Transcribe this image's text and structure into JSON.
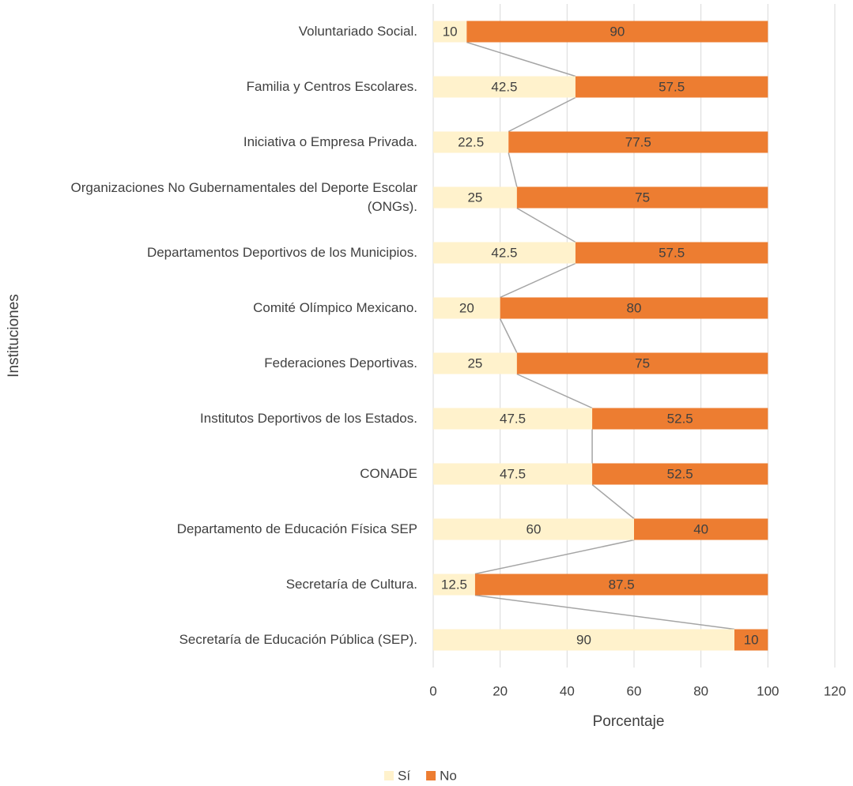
{
  "chart_data": {
    "type": "stacked-barh",
    "xlabel": "Porcentaje",
    "ylabel": "Instituciones",
    "categories": [
      "Voluntariado Social.",
      "Familia y Centros Escolares.",
      "Iniciativa o Empresa Privada.",
      "Organizaciones No Gubernamentales del Deporte Escolar (ONGs).",
      "Departamentos Deportivos de los Municipios.",
      "Comité Olímpico Mexicano.",
      "Federaciones Deportivas.",
      "Institutos Deportivos de los Estados.",
      "CONADE",
      "Departamento de Educación Física SEP",
      "Secretaría de Cultura.",
      "Secretaría de Educación Pública (SEP)."
    ],
    "series": [
      {
        "name": "Sí",
        "color": "#fff2cc",
        "values": [
          10,
          42.5,
          22.5,
          25,
          42.5,
          20,
          25,
          47.5,
          47.5,
          60,
          12.5,
          90
        ]
      },
      {
        "name": "No",
        "color": "#ed7d31",
        "values": [
          90,
          57.5,
          77.5,
          75,
          57.5,
          80,
          75,
          52.5,
          52.5,
          40,
          87.5,
          10
        ]
      }
    ],
    "xlim": [
      0,
      120
    ],
    "xticks": [
      0,
      20,
      40,
      60,
      80,
      100,
      120
    ],
    "grid": true,
    "series_lines": true,
    "legend": "bottom"
  }
}
